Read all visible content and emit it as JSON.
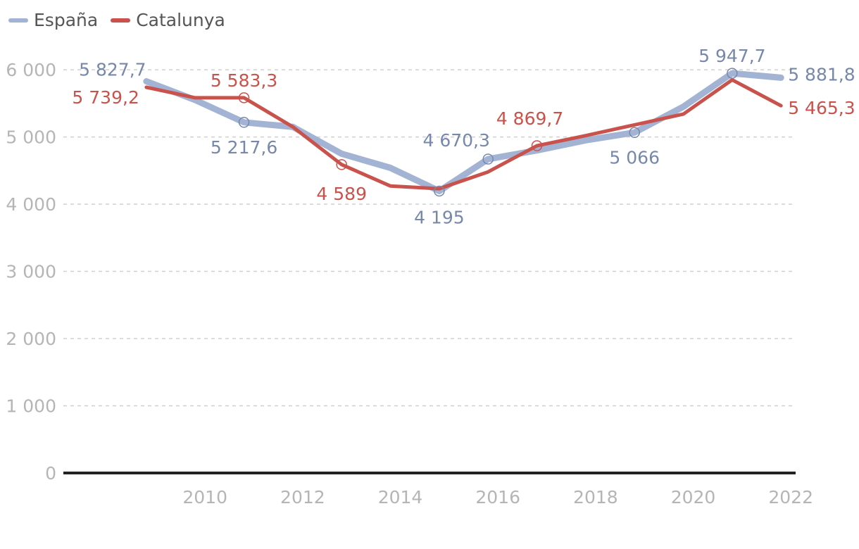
{
  "chart_data": {
    "type": "line",
    "x": [
      2009,
      2010,
      2011,
      2012,
      2013,
      2014,
      2015,
      2016,
      2017,
      2018,
      2019,
      2020,
      2021,
      2022
    ],
    "x_ticks": [
      "2010",
      "2012",
      "2014",
      "2016",
      "2018",
      "2020",
      "2022"
    ],
    "x_tick_values": [
      2010,
      2012,
      2014,
      2016,
      2018,
      2020,
      2022
    ],
    "y_ticks": [
      "0",
      "1 000",
      "2 000",
      "3 000",
      "4 000",
      "5 000",
      "6 000"
    ],
    "y_tick_values": [
      0,
      1000,
      2000,
      3000,
      4000,
      5000,
      6000
    ],
    "ylim": [
      0,
      6200
    ],
    "xlim": [
      2007.3,
      2022.3
    ],
    "grid": true,
    "legend_position": "top-left",
    "series": [
      {
        "name": "España",
        "color": "#a3b3d4",
        "label_color": "#7788aa",
        "values": [
          5827.7,
          5550,
          5217.6,
          5150,
          4750,
          4540,
          4195,
          4670.3,
          4800,
          4950,
          5066,
          5450,
          5947.7,
          5881.8
        ],
        "annotations": [
          {
            "x": 2009,
            "text": "5 827,7",
            "marker": false
          },
          {
            "x": 2011,
            "text": "5 217,6",
            "marker": true
          },
          {
            "x": 2015,
            "text": "4 195",
            "marker": true
          },
          {
            "x": 2016,
            "text": "4 670,3",
            "marker": true
          },
          {
            "x": 2019,
            "text": "5 066",
            "marker": true
          },
          {
            "x": 2021,
            "text": "5 947,7",
            "marker": true
          },
          {
            "x": 2022,
            "text": "5 881,8",
            "marker": false
          }
        ]
      },
      {
        "name": "Catalunya",
        "color": "#c9534c",
        "label_color": "#c9534c",
        "values": [
          5739.2,
          5583.3,
          5583.3,
          5150,
          4589,
          4270,
          4230,
          4480,
          4869.7,
          5020,
          5180,
          5340,
          5850,
          5465.3
        ],
        "annotations": [
          {
            "x": 2009,
            "text": "5 739,2",
            "marker": false
          },
          {
            "x": 2011,
            "text": "5 583,3",
            "marker": true
          },
          {
            "x": 2013,
            "text": "4 589",
            "marker": true
          },
          {
            "x": 2017,
            "text": "4 869,7",
            "marker": true
          },
          {
            "x": 2022,
            "text": "5 465,3",
            "marker": false
          }
        ]
      }
    ]
  }
}
